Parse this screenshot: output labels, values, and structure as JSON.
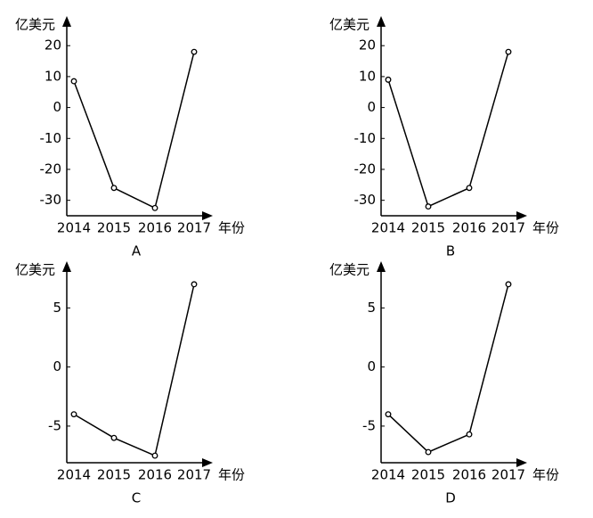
{
  "chart_data": [
    {
      "type": "line",
      "caption": "A",
      "y_label": "亿美元",
      "x_label": "年份",
      "categories": [
        "2014",
        "2015",
        "2016",
        "2017"
      ],
      "series": [
        {
          "color": "#000000",
          "values": [
            8.5,
            -26,
            -32.5,
            18
          ]
        }
      ],
      "ylim": [
        -35,
        29
      ],
      "yticks": [
        -30,
        -20,
        -10,
        0,
        10,
        20
      ]
    },
    {
      "type": "line",
      "caption": "B",
      "y_label": "亿美元",
      "x_label": "年份",
      "categories": [
        "2014",
        "2015",
        "2016",
        "2017"
      ],
      "series": [
        {
          "color": "#000000",
          "values": [
            9,
            -32,
            -26,
            18
          ]
        }
      ],
      "ylim": [
        -35,
        29
      ],
      "yticks": [
        -30,
        -20,
        -10,
        0,
        10,
        20
      ]
    },
    {
      "type": "line",
      "caption": "C",
      "y_label": "亿美元",
      "x_label": "年份",
      "categories": [
        "2014",
        "2015",
        "2016",
        "2017"
      ],
      "series": [
        {
          "color": "#000000",
          "values": [
            -4,
            -6,
            -7.5,
            7
          ]
        }
      ],
      "ylim": [
        -8.1,
        8.8
      ],
      "yticks": [
        -5,
        0,
        5
      ]
    },
    {
      "type": "line",
      "caption": "D",
      "y_label": "亿美元",
      "x_label": "年份",
      "categories": [
        "2014",
        "2015",
        "2016",
        "2017"
      ],
      "series": [
        {
          "color": "#000000",
          "values": [
            -4,
            -7.2,
            -5.7,
            7
          ]
        }
      ],
      "ylim": [
        -8.1,
        8.8
      ],
      "yticks": [
        -5,
        0,
        5
      ]
    }
  ]
}
